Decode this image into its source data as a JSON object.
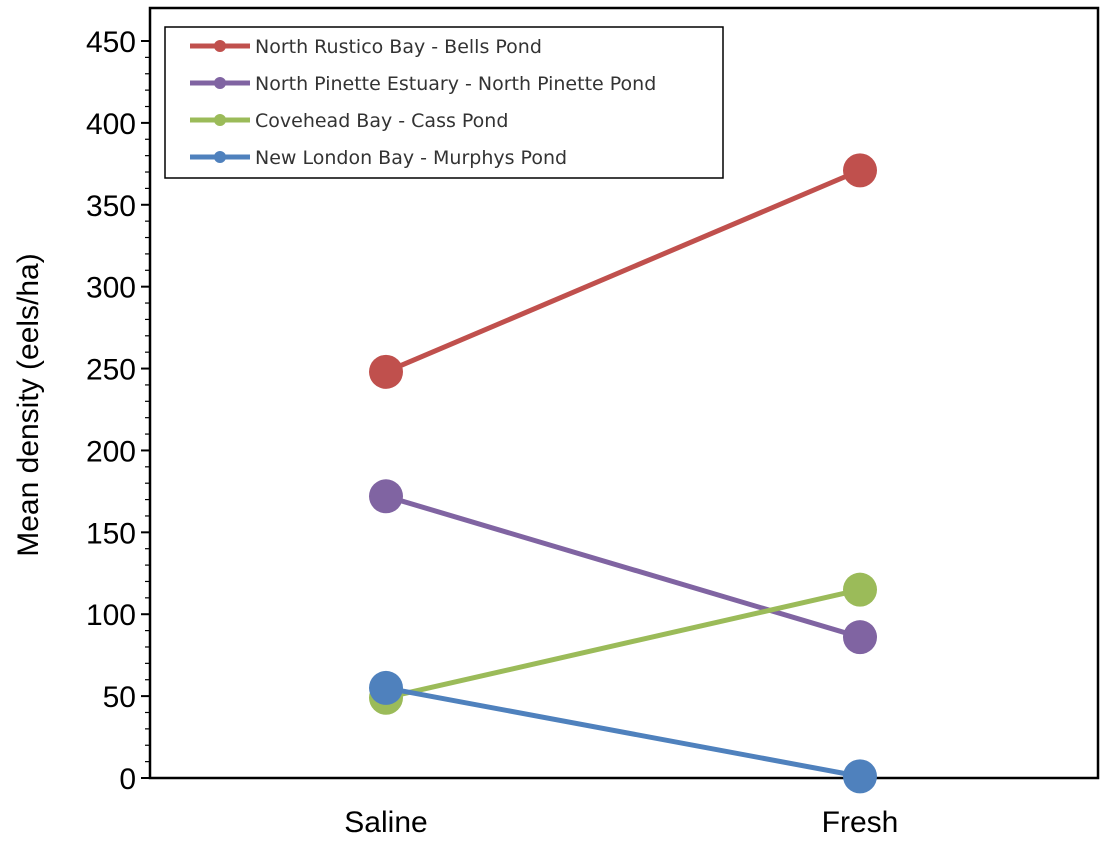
{
  "chart_data": {
    "type": "line",
    "categories": [
      "Saline",
      "Fresh"
    ],
    "ylabel": "Mean density (eels/ha)",
    "ylim": [
      0,
      450
    ],
    "yticks": [
      0,
      50,
      100,
      150,
      200,
      250,
      300,
      350,
      400,
      450
    ],
    "ytick_labels": [
      "0",
      "50",
      "100",
      "150",
      "200",
      "250",
      "300",
      "350",
      "400",
      "450"
    ],
    "grid": false,
    "legend_position": "top-left",
    "series": [
      {
        "name": "North Rustico Bay - Bells Pond",
        "color": "#C0504D",
        "values": [
          248,
          371
        ]
      },
      {
        "name": "North Pinette Estuary - North Pinette Pond",
        "color": "#8064A2",
        "values": [
          172,
          86
        ]
      },
      {
        "name": "Covehead Bay - Cass Pond",
        "color": "#9BBB59",
        "values": [
          49,
          115
        ]
      },
      {
        "name": "New London Bay - Murphys Pond",
        "color": "#4F81BD",
        "values": [
          55,
          1
        ]
      }
    ]
  }
}
